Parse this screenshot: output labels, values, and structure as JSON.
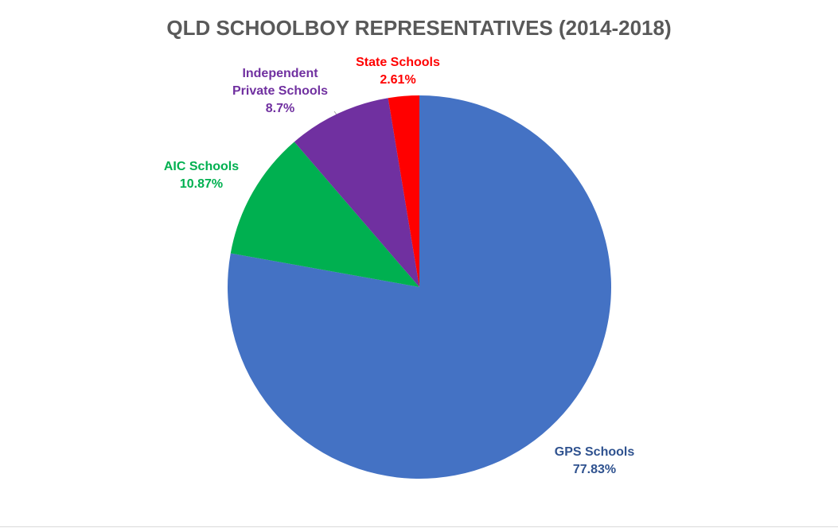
{
  "chart_data": {
    "type": "pie",
    "title": "QLD SCHOOLBOY REPRESENTATIVES (2014-2018)",
    "categories": [
      "GPS Schools",
      "AIC Schools",
      "Independent Private Schools",
      "State Schools"
    ],
    "values": [
      77.83,
      10.87,
      8.7,
      2.61
    ],
    "value_labels": [
      "77.83%",
      "10.87%",
      "8.7%",
      "2.61%"
    ],
    "colors": [
      "#4472c4",
      "#00b050",
      "#7030a0",
      "#ff0000"
    ],
    "label_colors": [
      "#2f528f",
      "#00b050",
      "#7030a0",
      "#ff0000"
    ]
  }
}
